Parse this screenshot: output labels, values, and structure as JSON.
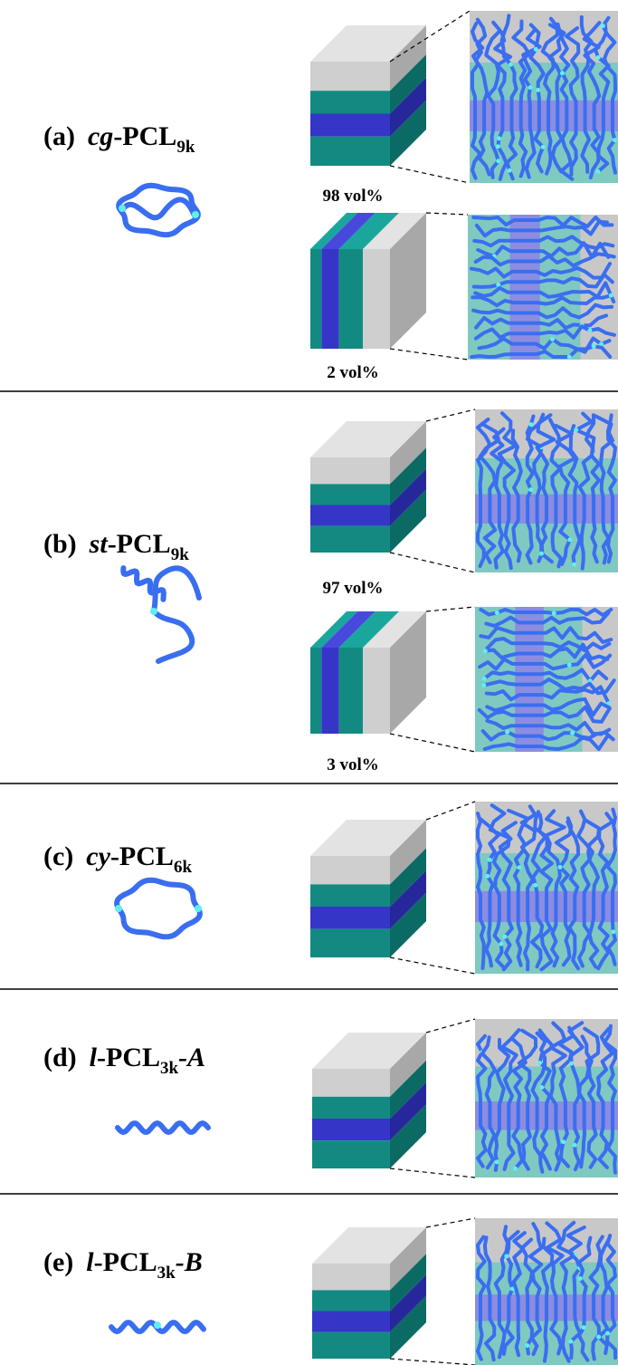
{
  "panels": [
    {
      "label": "(a)",
      "prefix": "cg",
      "name": "-PCL",
      "subscript": "9k",
      "fractions": [
        "98 vol%",
        "2 vol%"
      ]
    },
    {
      "label": "(b)",
      "prefix": "st",
      "name": "-PCL",
      "subscript": "9k",
      "fractions": [
        "97 vol%",
        "3 vol%"
      ]
    },
    {
      "label": "(c)",
      "prefix": "cy",
      "name": "-PCL",
      "subscript": "6k"
    },
    {
      "label": "(d)",
      "prefix": "l",
      "name": "-PCL",
      "subscript": "3k",
      "suffix": "-A"
    },
    {
      "label": "(e)",
      "prefix": "l",
      "name": "-PCL",
      "subscript": "3k",
      "suffix": "-B"
    }
  ]
}
